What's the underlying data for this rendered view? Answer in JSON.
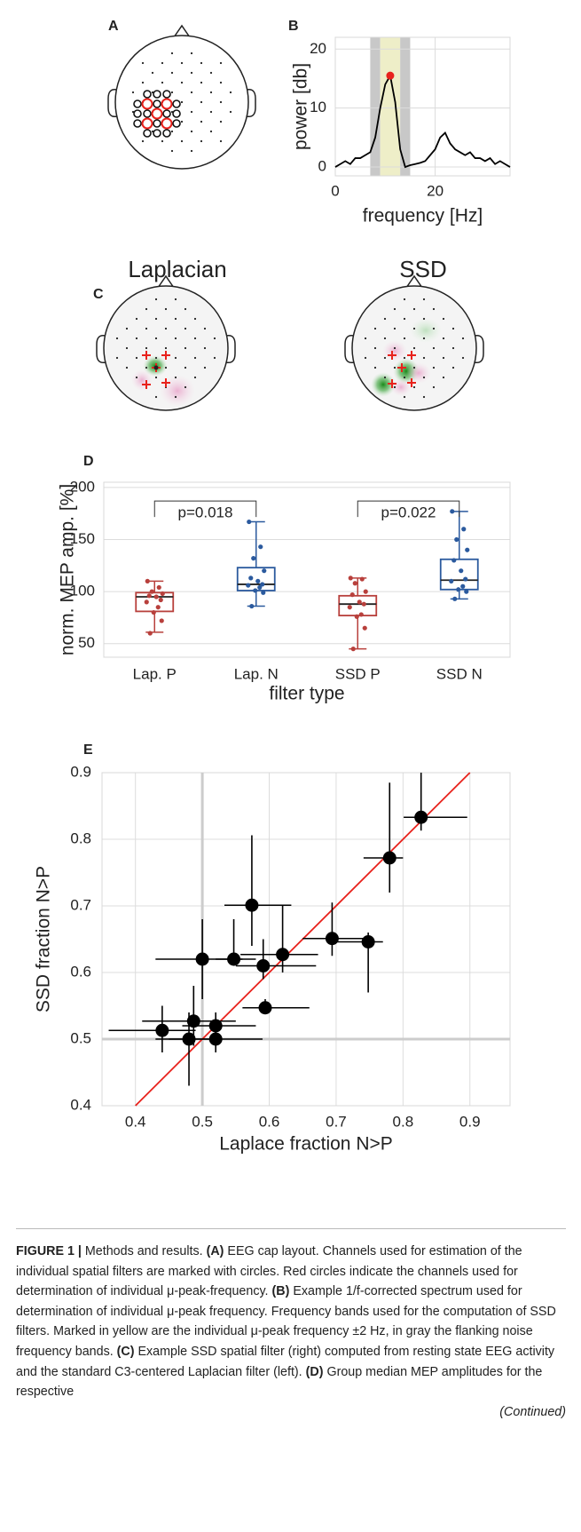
{
  "panel_labels": [
    "A",
    "B",
    "C",
    "D",
    "E"
  ],
  "head_titles": [
    "Laplacian",
    "SSD"
  ],
  "chart_data": [
    {
      "type": "line",
      "xlabel": "frequency [Hz]",
      "ylabel": "power [db]",
      "xlim": [
        0,
        35
      ],
      "ylim": [
        -1.5,
        22
      ],
      "xticks": [
        0,
        20
      ],
      "yticks": [
        0,
        10,
        20
      ],
      "grid": true,
      "color": "#000000",
      "x": [
        0,
        1,
        2,
        3,
        4,
        5,
        6,
        7,
        8,
        9,
        10,
        11,
        12,
        13,
        14,
        15,
        16,
        17,
        18,
        19,
        20,
        21,
        22,
        23,
        24,
        25,
        26,
        27,
        28,
        29,
        30,
        31,
        32,
        33,
        34,
        35
      ],
      "values": [
        0,
        0.5,
        1,
        0.5,
        1.5,
        1.5,
        2,
        2.5,
        5,
        10,
        14,
        15.5,
        11,
        3,
        0,
        0.3,
        0.5,
        0.7,
        1,
        2,
        3,
        5,
        5.8,
        4,
        3,
        2.5,
        2,
        2.5,
        1.5,
        1.5,
        1,
        1.5,
        0.5,
        1,
        0.5,
        0
      ],
      "marker": {
        "x": [
          11
        ],
        "values": [
          15.5
        ],
        "color": "#e8221c"
      },
      "bands": [
        {
          "x": [
            7,
            9
          ],
          "color": "#c8c8c8"
        },
        {
          "x": [
            9,
            13
          ],
          "color": "#eeeec8"
        },
        {
          "x": [
            13,
            15
          ],
          "color": "#c8c8c8"
        }
      ]
    },
    {
      "type": "box",
      "xlabel": "filter type",
      "ylabel": "norm. MEP amp. [%]",
      "categories": [
        "Lap. P",
        "Lap. N",
        "SSD P",
        "SSD N"
      ],
      "colors": [
        "#b8403c",
        "#2b5a9e",
        "#b8403c",
        "#2b5a9e"
      ],
      "ylim": [
        37,
        205
      ],
      "yticks": [
        50,
        100,
        150,
        200
      ],
      "grid": true,
      "whisker_low": [
        61,
        86,
        45,
        93
      ],
      "q1": [
        81,
        101,
        77,
        102
      ],
      "median": [
        95,
        107,
        88,
        111
      ],
      "q3": [
        99,
        123,
        96,
        131
      ],
      "whisker_high": [
        110,
        167,
        113,
        177
      ],
      "points": [
        [
          110,
          104,
          100,
          98,
          96,
          95,
          92,
          90,
          85,
          80,
          72,
          60
        ],
        [
          167,
          143,
          132,
          120,
          113,
          110,
          107,
          106,
          104,
          101,
          99,
          86
        ],
        [
          113,
          112,
          108,
          100,
          97,
          90,
          88,
          85,
          78,
          76,
          65,
          45
        ],
        [
          177,
          160,
          150,
          140,
          130,
          120,
          112,
          110,
          105,
          102,
          100,
          93
        ]
      ],
      "annotations": [
        {
          "text": "p=0.018",
          "span": [
            0,
            1
          ],
          "y": 187
        },
        {
          "text": "p=0.022",
          "span": [
            2,
            3
          ],
          "y": 187
        }
      ]
    },
    {
      "type": "scatter",
      "xlabel": "Laplace fraction N>P",
      "ylabel": "SSD fraction N>P",
      "xlim": [
        0.35,
        0.96
      ],
      "ylim": [
        0.4,
        0.9
      ],
      "xticks": [
        0.4,
        0.5,
        0.6,
        0.7,
        0.8,
        0.9
      ],
      "yticks": [
        0.4,
        0.5,
        0.6,
        0.7,
        0.8,
        0.9
      ],
      "grid": true,
      "color": "#000000",
      "x": [
        0.827,
        0.78,
        0.574,
        0.5,
        0.547,
        0.62,
        0.591,
        0.594,
        0.694,
        0.748,
        0.44,
        0.487,
        0.52,
        0.48,
        0.52
      ],
      "values": [
        0.833,
        0.772,
        0.701,
        0.62,
        0.62,
        0.627,
        0.61,
        0.547,
        0.651,
        0.646,
        0.513,
        0.527,
        0.52,
        0.5,
        0.5
      ],
      "x_low": [
        0.801,
        0.741,
        0.533,
        0.43,
        0.52,
        0.557,
        0.55,
        0.56,
        0.65,
        0.69,
        0.36,
        0.41,
        0.47,
        0.43,
        0.45
      ],
      "x_high": [
        0.896,
        0.8,
        0.633,
        0.56,
        0.58,
        0.673,
        0.67,
        0.66,
        0.74,
        0.77,
        0.49,
        0.55,
        0.58,
        0.51,
        0.59
      ],
      "y_low": [
        0.813,
        0.72,
        0.64,
        0.56,
        0.61,
        0.6,
        0.59,
        0.54,
        0.625,
        0.57,
        0.48,
        0.49,
        0.49,
        0.43,
        0.48
      ],
      "y_high": [
        0.9,
        0.885,
        0.806,
        0.68,
        0.68,
        0.7,
        0.65,
        0.56,
        0.705,
        0.66,
        0.55,
        0.58,
        0.54,
        0.54,
        0.52
      ],
      "reference_lines": {
        "x": 0.5,
        "y": 0.5,
        "color": "#cccccc"
      },
      "diagonal": {
        "x": [
          0.4,
          0.9
        ],
        "values": [
          0.4,
          0.9
        ],
        "color": "#e8221c"
      }
    }
  ],
  "caption": {
    "segments": [
      {
        "text": "FIGURE 1 |",
        "style": "bold"
      },
      {
        "text": " Methods and results. "
      },
      {
        "text": "(A)",
        "style": "bold"
      },
      {
        "text": " EEG cap layout. Channels used for estimation of the individual spatial filters are marked with circles. Red circles indicate the channels used for determination of individual μ-peak-frequency. "
      },
      {
        "text": "(B)",
        "style": "bold"
      },
      {
        "text": " Example 1/f-corrected spectrum used for determination of individual μ-peak frequency. Frequency bands used for the computation of SSD filters. Marked in yellow are the individual μ-peak frequency ±2 Hz, in gray the flanking noise frequency bands. "
      },
      {
        "text": "(C)",
        "style": "bold"
      },
      {
        "text": " Example SSD spatial filter (right) computed from resting state EEG activity and the standard C3-centered Laplacian filter (left). "
      },
      {
        "text": "(D)",
        "style": "bold"
      },
      {
        "text": " Group median MEP amplitudes for the respective"
      }
    ],
    "continued": "(Continued)"
  }
}
